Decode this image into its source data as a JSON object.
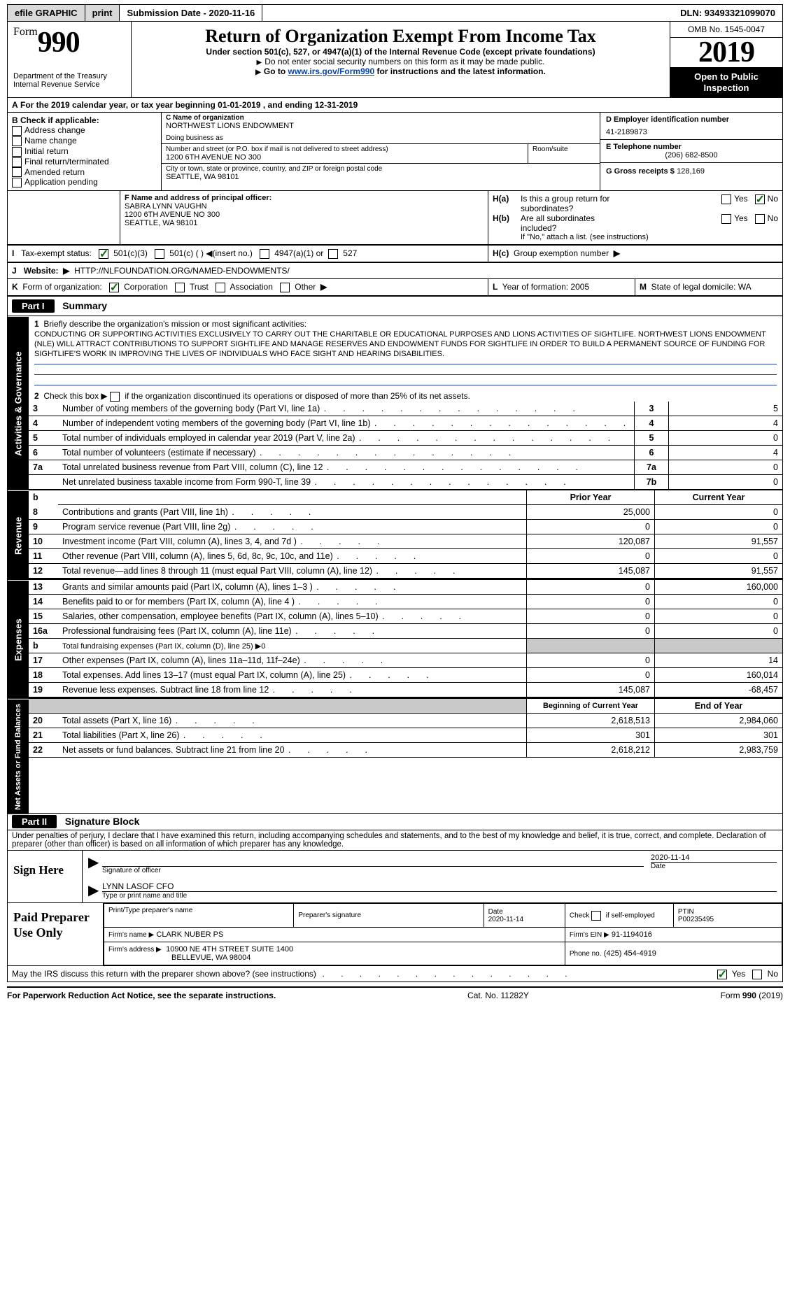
{
  "topbar": {
    "efile": "efile GRAPHIC",
    "print": "print",
    "submission_label": "Submission Date - ",
    "submission_date": "2020-11-16",
    "dln": "DLN: 93493321099070"
  },
  "header": {
    "form_word": "Form",
    "form_number": "990",
    "dept1": "Department of the Treasury",
    "dept2": "Internal Revenue Service",
    "title": "Return of Organization Exempt From Income Tax",
    "subtitle": "Under section 501(c), 527, or 4947(a)(1) of the Internal Revenue Code (except private foundations)",
    "warn": "Do not enter social security numbers on this form as it may be made public.",
    "goto_pre": "Go to ",
    "goto_link": "www.irs.gov/Form990",
    "goto_post": " for instructions and the latest information.",
    "omb": "OMB No. 1545-0047",
    "tax_year_display": "2019",
    "open": "Open to Public Inspection"
  },
  "line_a": {
    "prefix": "A",
    "text": "For the 2019 calendar year, or tax year beginning ",
    "begin": "01-01-2019",
    "mid": " , and ending ",
    "end": "12-31-2019"
  },
  "boxB": {
    "label": "B Check if applicable:",
    "options": [
      "Address change",
      "Name change",
      "Initial return",
      "Final return/terminated",
      "Amended return",
      "Application pending"
    ]
  },
  "boxC": {
    "label": "C Name of organization",
    "name": "NORTHWEST LIONS ENDOWMENT",
    "dba_label": "Doing business as",
    "street_label": "Number and street (or P.O. box if mail is not delivered to street address)",
    "room_label": "Room/suite",
    "street": "1200 6TH AVENUE NO 300",
    "city_label": "City or town, state or province, country, and ZIP or foreign postal code",
    "city": "SEATTLE, WA  98101"
  },
  "boxD": {
    "label": "D Employer identification number",
    "value": "41-2189873"
  },
  "boxE": {
    "label": "E Telephone number",
    "value": "(206) 682-8500"
  },
  "boxG": {
    "label": "G Gross receipts $",
    "value": "128,169"
  },
  "boxF": {
    "label": "F  Name and address of principal officer:",
    "line1": "SABRA LYNN VAUGHN",
    "line2": "1200 6TH AVENUE NO 300",
    "line3": "SEATTLE, WA  98101"
  },
  "boxH": {
    "Ha_label": "H(a)",
    "Ha_text1": "Is this a group return for",
    "Ha_text2": "subordinates?",
    "Hb_label": "H(b)",
    "Hb_text1": "Are all subordinates",
    "Hb_text2": "included?",
    "Hb_note": "If \"No,\" attach a list. (see instructions)",
    "Hc_label": "H(c)",
    "Hc_text": "Group exemption number",
    "Ha_no_checked": true,
    "yes": "Yes",
    "no": "No"
  },
  "lineI": {
    "label": "I",
    "text": "Tax-exempt status:",
    "opts": [
      "501(c)(3)",
      "501(c) (   )",
      "(insert no.)",
      "4947(a)(1) or",
      "527"
    ],
    "checked_index": 0
  },
  "lineJ": {
    "label": "J",
    "text": "Website:",
    "value": "HTTP://NLFOUNDATION.ORG/NAMED-ENDOWMENTS/"
  },
  "lineK": {
    "label": "K",
    "text": "Form of organization:",
    "opts": [
      "Corporation",
      "Trust",
      "Association",
      "Other"
    ],
    "checked_index": 0
  },
  "lineL": {
    "label": "L",
    "text": "Year of formation: ",
    "value": "2005"
  },
  "lineM": {
    "label": "M",
    "text": "State of legal domicile: ",
    "value": "WA"
  },
  "part1": {
    "bar": "Part I",
    "title": "Summary",
    "q1_label": "1",
    "q1_text": "Briefly describe the organization's mission or most significant activities:",
    "q1_body": "CONDUCTING OR SUPPORTING ACTIVITIES EXCLUSIVELY TO CARRY OUT THE CHARITABLE OR EDUCATIONAL PURPOSES AND LIONS ACTIVITIES OF SIGHTLIFE. NORTHWEST LIONS ENDOWMENT (NLE) WILL ATTRACT CONTRIBUTIONS TO SUPPORT SIGHTLIFE AND MANAGE RESERVES AND ENDOWMENT FUNDS FOR SIGHTLIFE IN ORDER TO BUILD A PERMANENT SOURCE OF FUNDING FOR SIGHTLIFE'S WORK IN IMPROVING THE LIVES OF INDIVIDUALS WHO FACE SIGHT AND HEARING DISABILITIES.",
    "vt_activities": "Activities & Governance",
    "vt_revenue": "Revenue",
    "vt_expenses": "Expenses",
    "vt_net": "Net Assets or Fund Balances",
    "q2": "Check this box ▶        if the organization discontinued its operations or disposed of more than 25% of its net assets.",
    "lines_gov": [
      {
        "n": "3",
        "t": "Number of voting members of the governing body (Part VI, line 1a)",
        "code": "3",
        "v": "5"
      },
      {
        "n": "4",
        "t": "Number of independent voting members of the governing body (Part VI, line 1b)",
        "code": "4",
        "v": "4"
      },
      {
        "n": "5",
        "t": "Total number of individuals employed in calendar year 2019 (Part V, line 2a)",
        "code": "5",
        "v": "0"
      },
      {
        "n": "6",
        "t": "Total number of volunteers (estimate if necessary)",
        "code": "6",
        "v": "4"
      },
      {
        "n": "7a",
        "t": "Total unrelated business revenue from Part VIII, column (C), line 12",
        "code": "7a",
        "v": "0"
      },
      {
        "n": "",
        "t": "Net unrelated business taxable income from Form 990-T, line 39",
        "code": "7b",
        "v": "0"
      }
    ],
    "col_prior": "Prior Year",
    "col_current": "Current Year",
    "lines_rev": [
      {
        "n": "8",
        "t": "Contributions and grants (Part VIII, line 1h)",
        "p": "25,000",
        "c": "0"
      },
      {
        "n": "9",
        "t": "Program service revenue (Part VIII, line 2g)",
        "p": "0",
        "c": "0"
      },
      {
        "n": "10",
        "t": "Investment income (Part VIII, column (A), lines 3, 4, and 7d )",
        "p": "120,087",
        "c": "91,557"
      },
      {
        "n": "11",
        "t": "Other revenue (Part VIII, column (A), lines 5, 6d, 8c, 9c, 10c, and 11e)",
        "p": "0",
        "c": "0"
      },
      {
        "n": "12",
        "t": "Total revenue—add lines 8 through 11 (must equal Part VIII, column (A), line 12)",
        "p": "145,087",
        "c": "91,557"
      }
    ],
    "lines_exp": [
      {
        "n": "13",
        "t": "Grants and similar amounts paid (Part IX, column (A), lines 1–3 )",
        "p": "0",
        "c": "160,000"
      },
      {
        "n": "14",
        "t": "Benefits paid to or for members (Part IX, column (A), line 4 )",
        "p": "0",
        "c": "0"
      },
      {
        "n": "15",
        "t": "Salaries, other compensation, employee benefits (Part IX, column (A), lines 5–10)",
        "p": "0",
        "c": "0"
      },
      {
        "n": "16a",
        "t": "Professional fundraising fees (Part IX, column (A), line 11e)",
        "p": "0",
        "c": "0"
      },
      {
        "n": "b",
        "t": "Total fundraising expenses (Part IX, column (D), line 25) ▶0",
        "p": "",
        "c": "",
        "grey": true
      },
      {
        "n": "17",
        "t": "Other expenses (Part IX, column (A), lines 11a–11d, 11f–24e)",
        "p": "0",
        "c": "14"
      },
      {
        "n": "18",
        "t": "Total expenses. Add lines 13–17 (must equal Part IX, column (A), line 25)",
        "p": "0",
        "c": "160,014"
      },
      {
        "n": "19",
        "t": "Revenue less expenses. Subtract line 18 from line 12",
        "p": "145,087",
        "c": "-68,457"
      }
    ],
    "col_begin": "Beginning of Current Year",
    "col_end": "End of Year",
    "lines_net": [
      {
        "n": "20",
        "t": "Total assets (Part X, line 16)",
        "p": "2,618,513",
        "c": "2,984,060"
      },
      {
        "n": "21",
        "t": "Total liabilities (Part X, line 26)",
        "p": "301",
        "c": "301"
      },
      {
        "n": "22",
        "t": "Net assets or fund balances. Subtract line 21 from line 20",
        "p": "2,618,212",
        "c": "2,983,759"
      }
    ]
  },
  "part2": {
    "bar": "Part II",
    "title": "Signature Block",
    "decl": "Under penalties of perjury, I declare that I have examined this return, including accompanying schedules and statements, and to the best of my knowledge and belief, it is true, correct, and complete. Declaration of preparer (other than officer) is based on all information of which preparer has any knowledge.",
    "sign_here": "Sign Here",
    "sig_officer": "Signature of officer",
    "sig_date": "2020-11-14",
    "date_label": "Date",
    "officer_name": "LYNN LASOF CFO",
    "type_name": "Type or print name and title",
    "paid": "Paid Preparer Use Only",
    "pp_name_label": "Print/Type preparer's name",
    "pp_sig_label": "Preparer's signature",
    "pp_date_label": "Date",
    "pp_date": "2020-11-14",
    "pp_check_label": "Check          if self-employed",
    "pp_ptin_label": "PTIN",
    "pp_ptin": "P00235495",
    "firm_name_label": "Firm's name     ▶",
    "firm_name": "CLARK NUBER PS",
    "firm_ein_label": "Firm's EIN ▶",
    "firm_ein": "91-1194016",
    "firm_addr_label": "Firm's address ▶",
    "firm_addr1": "10900 NE 4TH STREET SUITE 1400",
    "firm_addr2": "BELLEVUE, WA  98004",
    "firm_phone_label": "Phone no.",
    "firm_phone": "(425) 454-4919",
    "discuss": "May the IRS discuss this return with the preparer shown above? (see instructions)",
    "yes": "Yes",
    "no": "No",
    "discuss_yes_checked": true
  },
  "footer": {
    "left": "For Paperwork Reduction Act Notice, see the separate instructions.",
    "mid": "Cat. No. 11282Y",
    "right_pre": "Form ",
    "right_form": "990",
    "right_post": " (2019)"
  },
  "colors": {
    "link": "#0645AD",
    "check": "#0a6e0a",
    "grey": "#c9c9c9"
  }
}
